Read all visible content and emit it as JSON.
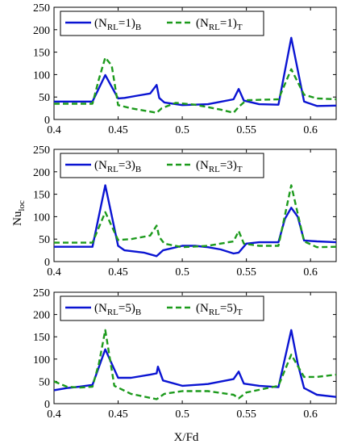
{
  "chart_data": [
    {
      "type": "line",
      "xlim": [
        0.4,
        0.62
      ],
      "ylim": [
        0,
        250
      ],
      "xticks": [
        "0.4",
        "0.45",
        "0.5",
        "0.55",
        "0.6"
      ],
      "yticks": [
        "0",
        "50",
        "100",
        "150",
        "200",
        "250"
      ],
      "legend_position": "top-left",
      "series": [
        {
          "label": {
            "base": "(N",
            "sub1": "RL",
            "mid": "=1)",
            "sub2": "B"
          },
          "color": "#0a14d2",
          "style": "solid",
          "x": [
            0.4,
            0.43,
            0.44,
            0.45,
            0.455,
            0.465,
            0.475,
            0.48,
            0.482,
            0.486,
            0.5,
            0.52,
            0.54,
            0.544,
            0.548,
            0.56,
            0.575,
            0.585,
            0.595,
            0.605,
            0.62
          ],
          "y": [
            40,
            40,
            99,
            47,
            48,
            53,
            58,
            77,
            48,
            38,
            32,
            34,
            45,
            68,
            42,
            34,
            33,
            182,
            40,
            30,
            31
          ]
        },
        {
          "label": {
            "base": "(N",
            "sub1": "RL",
            "mid": "=1)",
            "sub2": "T"
          },
          "color": "#1c9a1c",
          "style": "dashed",
          "x": [
            0.4,
            0.43,
            0.435,
            0.44,
            0.445,
            0.45,
            0.46,
            0.47,
            0.48,
            0.484,
            0.495,
            0.51,
            0.53,
            0.54,
            0.544,
            0.55,
            0.575,
            0.585,
            0.595,
            0.605,
            0.62
          ],
          "y": [
            35,
            35,
            90,
            138,
            120,
            32,
            25,
            20,
            15,
            25,
            37,
            33,
            22,
            15,
            28,
            43,
            45,
            112,
            55,
            47,
            45
          ]
        }
      ]
    },
    {
      "type": "line",
      "ylabel": "Nu",
      "ylabel_sub": "loc",
      "xlim": [
        0.4,
        0.62
      ],
      "ylim": [
        0,
        250
      ],
      "xticks": [
        "0.4",
        "0.45",
        "0.5",
        "0.55",
        "0.6"
      ],
      "yticks": [
        "0",
        "50",
        "100",
        "150",
        "200",
        "250"
      ],
      "legend_position": "top-left",
      "series": [
        {
          "label": {
            "base": "(N",
            "sub1": "RL",
            "mid": "=3)",
            "sub2": "B"
          },
          "color": "#0a14d2",
          "style": "solid",
          "x": [
            0.4,
            0.43,
            0.44,
            0.45,
            0.455,
            0.47,
            0.48,
            0.485,
            0.5,
            0.51,
            0.52,
            0.53,
            0.54,
            0.544,
            0.55,
            0.56,
            0.575,
            0.58,
            0.585,
            0.59,
            0.595,
            0.605,
            0.62
          ],
          "y": [
            33,
            33,
            170,
            35,
            25,
            20,
            12,
            25,
            35,
            35,
            32,
            27,
            18,
            20,
            40,
            43,
            43,
            95,
            120,
            100,
            47,
            45,
            43
          ]
        },
        {
          "label": {
            "base": "(N",
            "sub1": "RL",
            "mid": "=3)",
            "sub2": "T"
          },
          "color": "#1c9a1c",
          "style": "dashed",
          "x": [
            0.4,
            0.43,
            0.44,
            0.45,
            0.46,
            0.475,
            0.48,
            0.482,
            0.486,
            0.5,
            0.52,
            0.54,
            0.544,
            0.548,
            0.56,
            0.575,
            0.585,
            0.595,
            0.605,
            0.62
          ],
          "y": [
            42,
            42,
            110,
            48,
            50,
            58,
            80,
            55,
            40,
            32,
            35,
            45,
            68,
            40,
            35,
            35,
            170,
            45,
            32,
            33
          ]
        }
      ]
    },
    {
      "type": "line",
      "xlabel": "X/Fd",
      "xlim": [
        0.4,
        0.62
      ],
      "ylim": [
        0,
        250
      ],
      "xticks": [
        "0.4",
        "0.45",
        "0.5",
        "0.55",
        "0.6"
      ],
      "yticks": [
        "0",
        "50",
        "100",
        "150",
        "200",
        "250"
      ],
      "legend_position": "top-left",
      "series": [
        {
          "label": {
            "base": "(N",
            "sub1": "RL",
            "mid": "=5)",
            "sub2": "B"
          },
          "color": "#0a14d2",
          "style": "solid",
          "x": [
            0.4,
            0.41,
            0.42,
            0.43,
            0.44,
            0.45,
            0.46,
            0.475,
            0.48,
            0.481,
            0.485,
            0.5,
            0.52,
            0.54,
            0.544,
            0.548,
            0.56,
            0.575,
            0.585,
            0.59,
            0.595,
            0.605,
            0.62
          ],
          "y": [
            30,
            35,
            38,
            42,
            122,
            58,
            58,
            65,
            68,
            83,
            52,
            40,
            44,
            55,
            72,
            45,
            40,
            37,
            165,
            90,
            35,
            20,
            15
          ]
        },
        {
          "label": {
            "base": "(N",
            "sub1": "RL",
            "mid": "=5)",
            "sub2": "T"
          },
          "color": "#1c9a1c",
          "style": "dashed",
          "x": [
            0.4,
            0.41,
            0.42,
            0.43,
            0.435,
            0.44,
            0.447,
            0.46,
            0.48,
            0.486,
            0.5,
            0.52,
            0.54,
            0.544,
            0.55,
            0.575,
            0.585,
            0.595,
            0.605,
            0.62
          ],
          "y": [
            50,
            38,
            36,
            38,
            90,
            165,
            40,
            22,
            10,
            22,
            28,
            28,
            20,
            12,
            25,
            40,
            110,
            60,
            60,
            65
          ]
        }
      ]
    }
  ]
}
